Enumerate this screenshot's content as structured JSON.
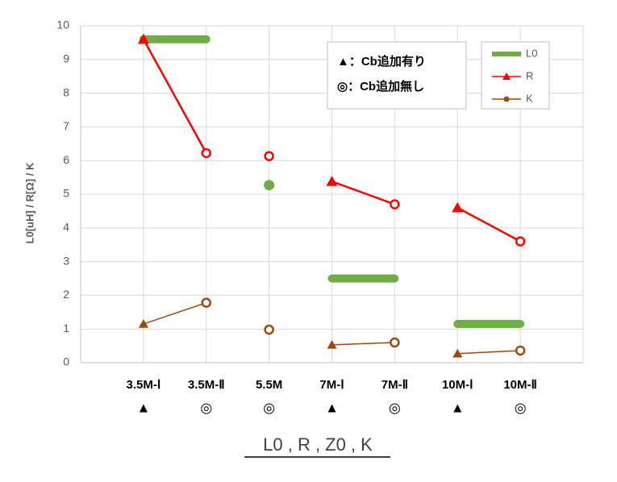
{
  "chart_data": {
    "type": "line",
    "y_label": "L0[uH] / R[Ω] / K",
    "categories": [
      "3.5M-Ⅰ",
      "3.5M-Ⅱ",
      "5.5M",
      "7M-Ⅰ",
      "7M-Ⅱ",
      "10M-Ⅰ",
      "10M-Ⅱ"
    ],
    "markers": [
      "▲",
      "◎",
      "◎",
      "▲",
      "◎",
      "▲",
      "◎"
    ],
    "series": [
      {
        "name": "L0",
        "color": "#70ad47",
        "values": [
          9.6,
          9.6,
          5.27,
          2.5,
          2.5,
          1.15,
          1.15
        ]
      },
      {
        "name": "R",
        "color": "#ff0000",
        "values": [
          9.6,
          6.22,
          6.13,
          5.38,
          4.7,
          4.6,
          3.6
        ]
      },
      {
        "name": "K",
        "color": "#9e480e",
        "values": [
          1.15,
          1.78,
          0.98,
          0.53,
          0.6,
          0.27,
          0.36
        ]
      }
    ],
    "annotations": [
      "▲：Cb追加有り",
      "◎：Cb追加無し"
    ],
    "caption": "L0 , R , Z0 , K",
    "ylim": [
      0,
      10
    ],
    "yticks": [
      0,
      1,
      2,
      3,
      4,
      5,
      6,
      7,
      8,
      9,
      10
    ],
    "grid": true
  }
}
